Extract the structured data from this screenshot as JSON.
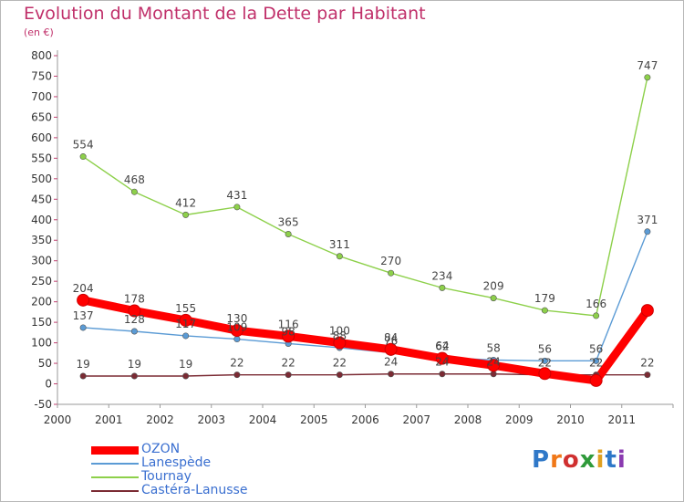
{
  "title": "Evolution du Montant de la Dette par Habitant",
  "subtitle": "(en €)",
  "logo_text": "Proxiti",
  "chart_data": {
    "type": "line",
    "title": "Evolution du Montant de la Dette par Habitant",
    "subtitle": "(en €)",
    "xlabel": "",
    "ylabel": "",
    "x": [
      "2000",
      "2001",
      "2002",
      "2003",
      "2004",
      "2005",
      "2006",
      "2007",
      "2008",
      "2009",
      "2010",
      "2011"
    ],
    "ylim": [
      -50,
      800
    ],
    "yticks": [
      -50,
      0,
      50,
      100,
      150,
      200,
      250,
      300,
      350,
      400,
      450,
      500,
      550,
      600,
      650,
      700,
      750,
      800
    ],
    "grid": false,
    "legend_position": "bottom-left",
    "series": [
      {
        "name": "OZON",
        "color": "#ff0000",
        "values": [
          204,
          178,
          155,
          130,
          116,
          100,
          84,
          62,
          45,
          25,
          8,
          179
        ],
        "labels": [
          "204",
          "178",
          "155",
          "130",
          "116",
          "100",
          "84",
          "62",
          "",
          "",
          "",
          ""
        ]
      },
      {
        "name": "Lanespède",
        "color": "#5b9bd5",
        "values": [
          137,
          128,
          117,
          109,
          98,
          88,
          76,
          64,
          58,
          56,
          56,
          371
        ],
        "labels": [
          "137",
          "128",
          "117",
          "109",
          "98",
          "88",
          "76",
          "64",
          "58",
          "56",
          "56",
          "371"
        ]
      },
      {
        "name": "Tournay",
        "color": "#8dd04a",
        "values": [
          554,
          468,
          412,
          431,
          365,
          311,
          270,
          234,
          209,
          179,
          166,
          747
        ],
        "labels": [
          "554",
          "468",
          "412",
          "431",
          "365",
          "311",
          "270",
          "234",
          "209",
          "179",
          "166",
          "747"
        ]
      },
      {
        "name": "Castéra-Lanusse",
        "color": "#7b2b34",
        "values": [
          19,
          19,
          19,
          22,
          22,
          22,
          24,
          24,
          24,
          22,
          22,
          22
        ],
        "labels": [
          "19",
          "19",
          "19",
          "22",
          "22",
          "22",
          "24",
          "24",
          "24",
          "22",
          "22",
          "22"
        ]
      }
    ]
  }
}
